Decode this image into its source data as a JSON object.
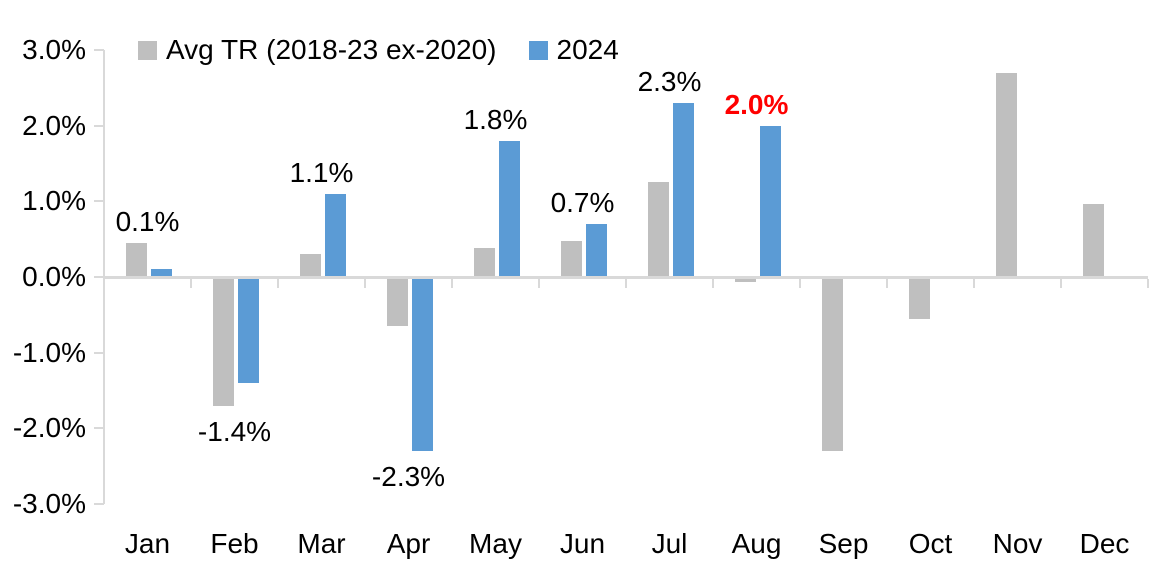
{
  "chart_data": {
    "type": "bar",
    "title": "",
    "categories": [
      "Jan",
      "Feb",
      "Mar",
      "Apr",
      "May",
      "Jun",
      "Jul",
      "Aug",
      "Sep",
      "Oct",
      "Nov",
      "Dec"
    ],
    "series": [
      {
        "name": "Avg TR (2018-23 ex-2020)",
        "color": "#BFBFBF",
        "values": [
          0.45,
          -1.7,
          0.3,
          -0.65,
          0.38,
          0.47,
          1.25,
          -0.07,
          -2.3,
          -0.55,
          2.7,
          0.97
        ]
      },
      {
        "name": "2024",
        "color": "#5B9BD5",
        "values": [
          0.1,
          -1.4,
          1.1,
          -2.3,
          1.8,
          0.7,
          2.3,
          2.0,
          null,
          null,
          null,
          null
        ]
      }
    ],
    "data_labels": [
      {
        "month": "Jan",
        "text": "0.1%",
        "color": "#000000",
        "bold": false,
        "position": "above"
      },
      {
        "month": "Feb",
        "text": "-1.4%",
        "color": "#000000",
        "bold": false,
        "position": "below"
      },
      {
        "month": "Mar",
        "text": "1.1%",
        "color": "#000000",
        "bold": false,
        "position": "above"
      },
      {
        "month": "Apr",
        "text": "-2.3%",
        "color": "#000000",
        "bold": false,
        "position": "below"
      },
      {
        "month": "May",
        "text": "1.8%",
        "color": "#000000",
        "bold": false,
        "position": "above"
      },
      {
        "month": "Jun",
        "text": "0.7%",
        "color": "#000000",
        "bold": false,
        "position": "above"
      },
      {
        "month": "Jul",
        "text": "2.3%",
        "color": "#000000",
        "bold": false,
        "position": "above"
      },
      {
        "month": "Aug",
        "text": "2.0%",
        "color": "#FF0000",
        "bold": true,
        "position": "above"
      },
      null,
      null,
      null,
      null
    ],
    "ylim": [
      -3,
      3
    ],
    "ytick_labels": [
      "3.0%",
      "2.0%",
      "1.0%",
      "0.0%",
      "-1.0%",
      "-2.0%",
      "-3.0%"
    ],
    "ytick_values": [
      3,
      2,
      1,
      0,
      -1,
      -2,
      -3
    ],
    "grid": false,
    "legend_position": "top-left-inside",
    "axis_color": "#D9D9D9",
    "label_text_color": "#000000"
  }
}
